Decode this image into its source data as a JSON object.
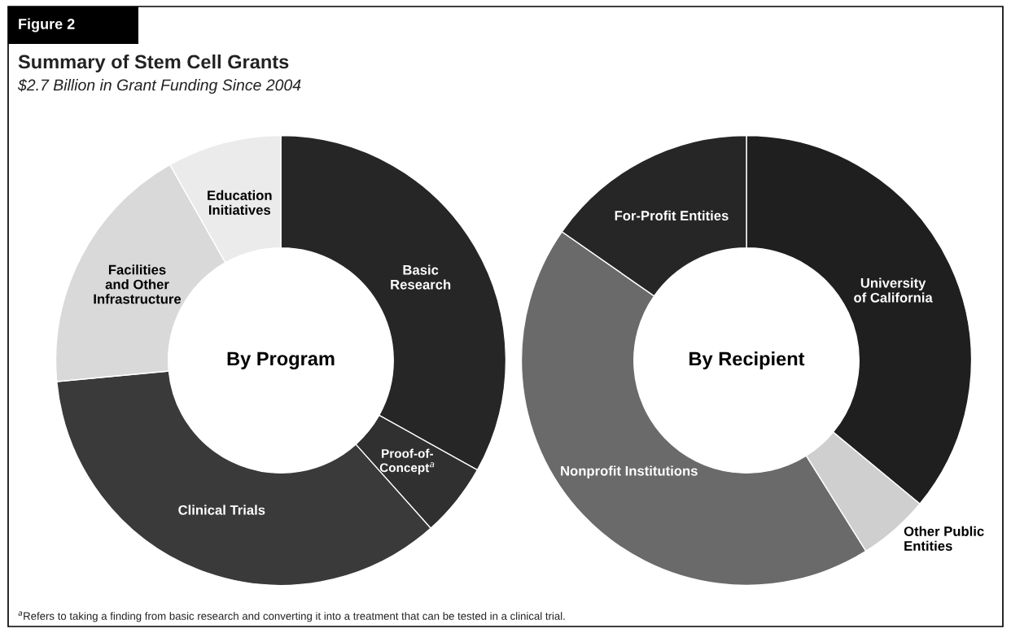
{
  "chart_data": [
    {
      "type": "donut",
      "title": "By Program",
      "categories": [
        "Basic\nResearch",
        "Proof-of-\nConcept$^{a}$",
        "Clinical Trials",
        "Facilities\nand Other\nInfrastructure",
        "Education\nInitiatives"
      ],
      "values": [
        33.1,
        5.3,
        35.1,
        18.3,
        8.2
      ],
      "colors": [
        "#262626",
        "#303030",
        "#3a3a3a",
        "#d9d9d9",
        "#ebebeb"
      ],
      "annotations": [
        "Figure 2",
        "Summary of Stem Cell Grants",
        "$2.7 Billion in Grant Funding Since 2004",
        "$^{a}$Refers to taking a finding from basic research and converting it into a treatment that can be tested in a clinical trial."
      ]
    },
    {
      "type": "donut",
      "title": "By Recipient",
      "categories": [
        "University\nof California",
        "Other Public\nEntities",
        "Nonprofit Institutions",
        "For-Profit Entities"
      ],
      "values": [
        36.0,
        5.1,
        43.6,
        15.3
      ],
      "colors": [
        "#1f1f1f",
        "#cfcfcf",
        "#6a6a6a",
        "#262626"
      ]
    }
  ]
}
